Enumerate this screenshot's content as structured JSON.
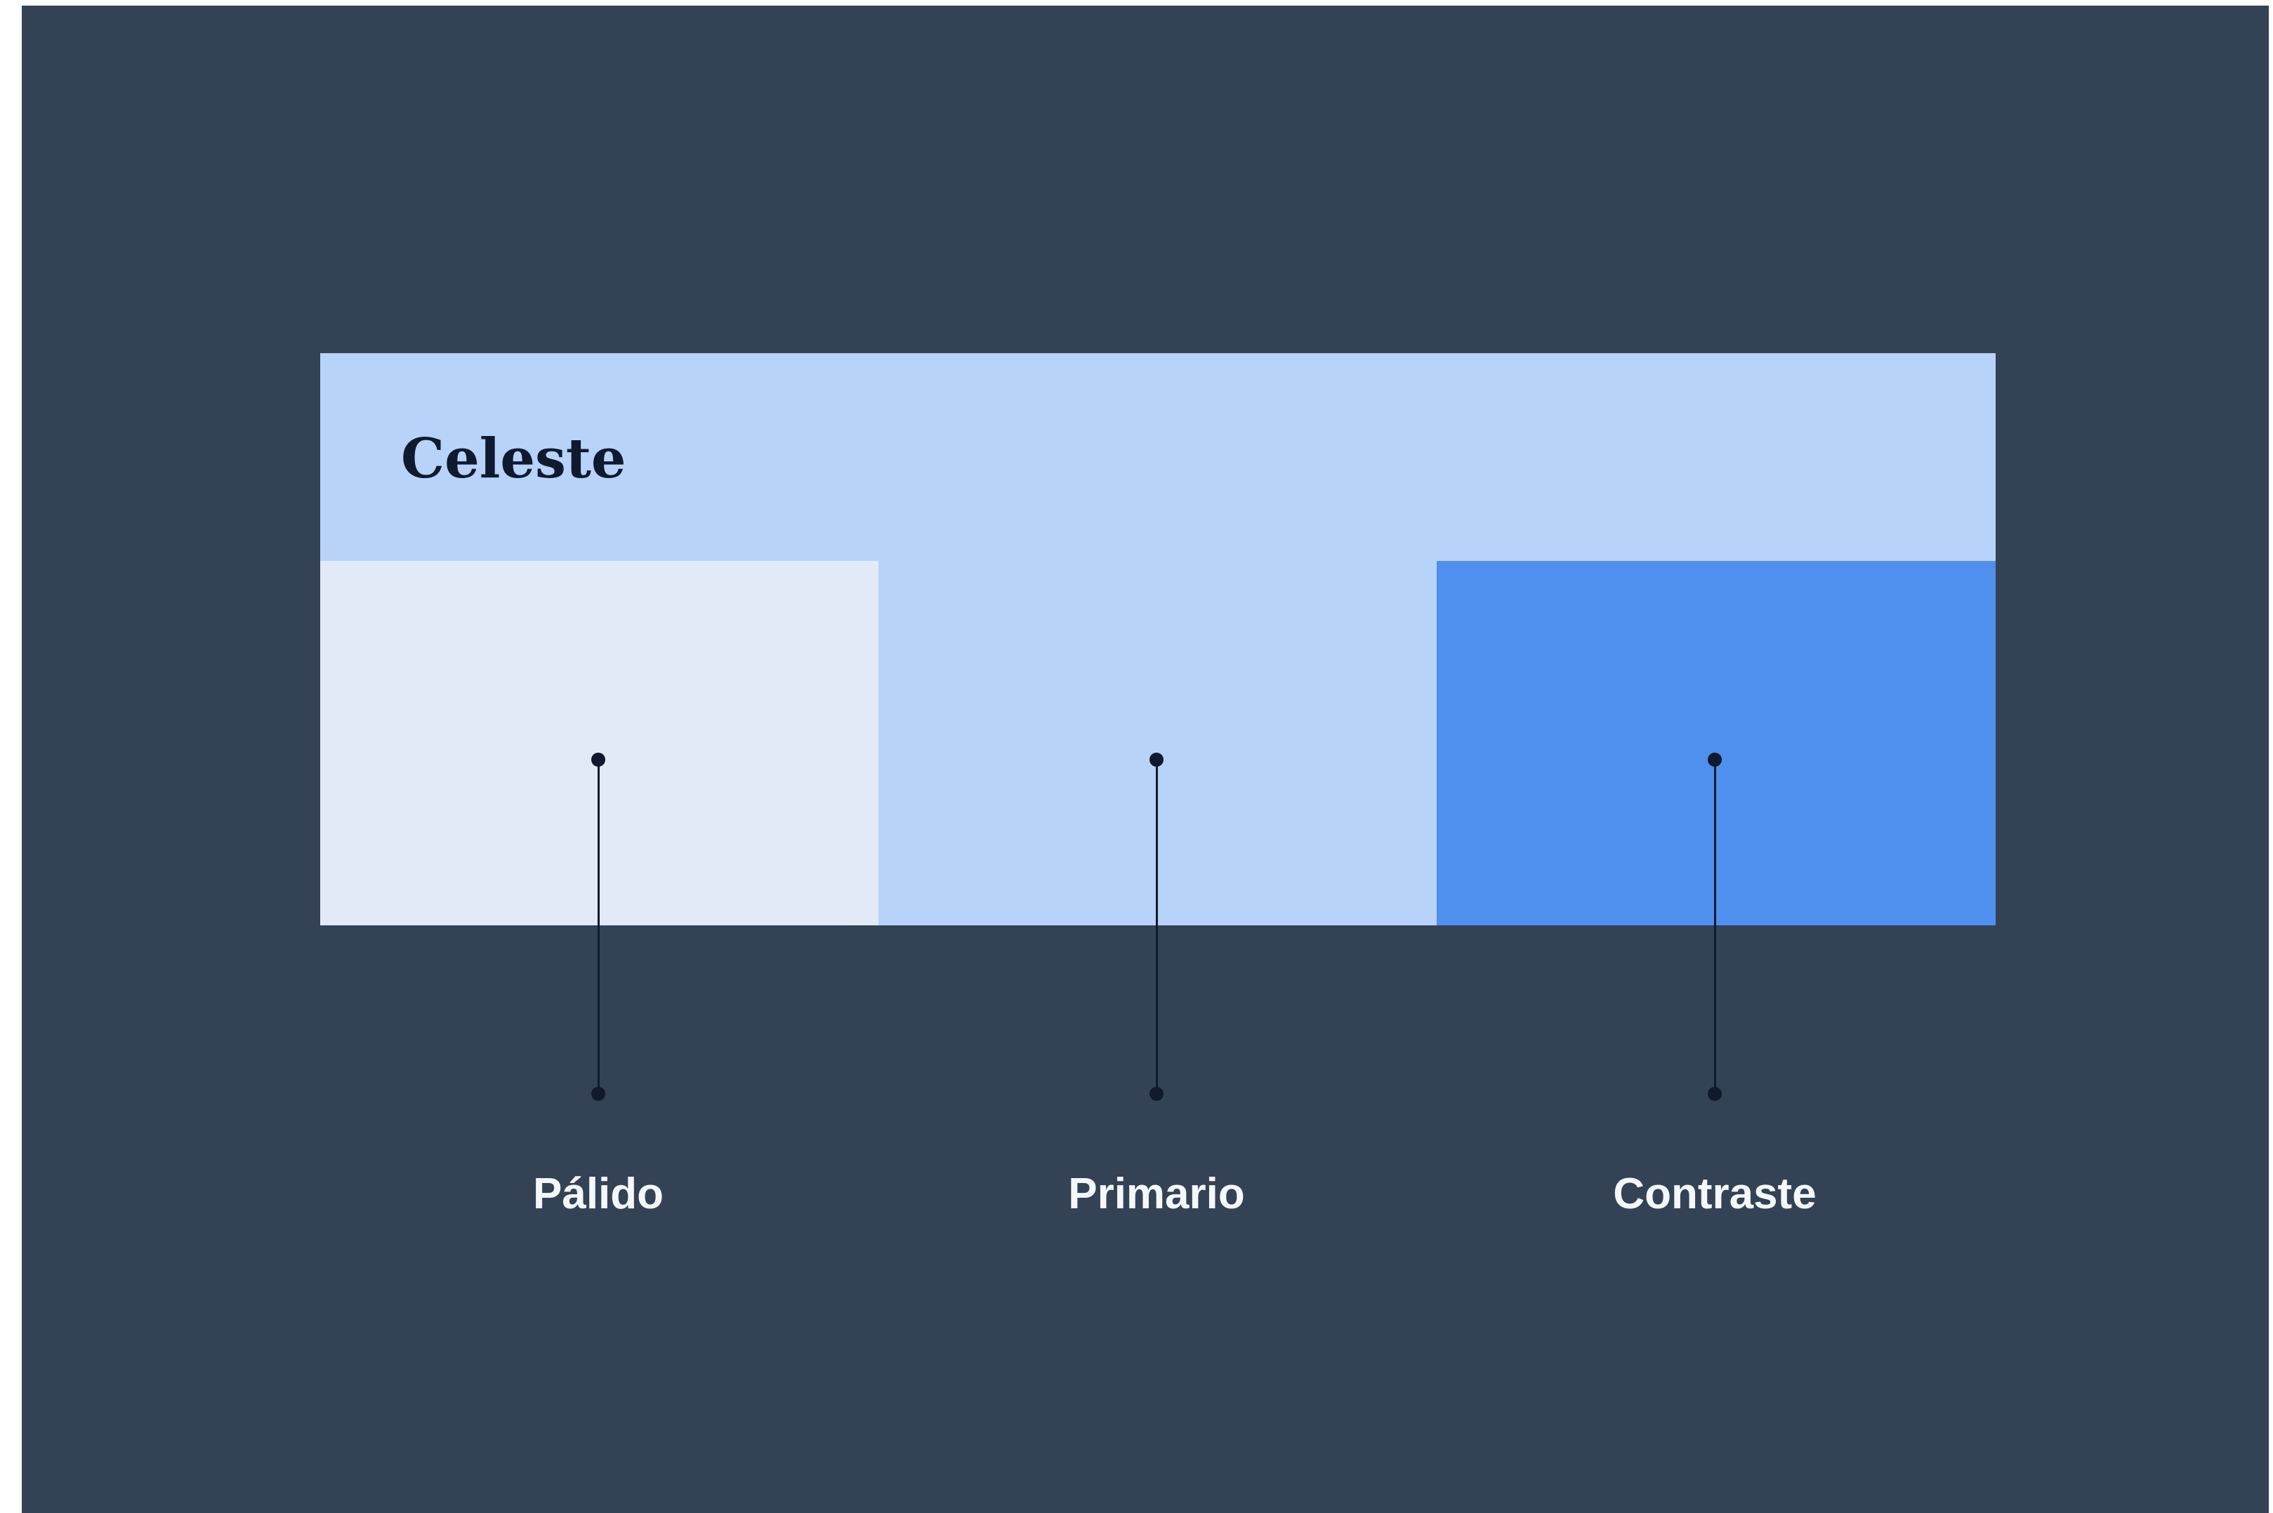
{
  "palette": {
    "title": "Celeste",
    "background_color": "#b8d3fa",
    "swatches": [
      {
        "label": "Pálido",
        "color": "#e3eaf7"
      },
      {
        "label": "Primario",
        "color": "#b8d3fa"
      },
      {
        "label": "Contraste",
        "color": "#4f8fee"
      }
    ]
  },
  "colors": {
    "frame_background": "#344256",
    "title_text": "#101a2e",
    "leader": "#111a2c",
    "label_text": "#f4f7fb"
  }
}
